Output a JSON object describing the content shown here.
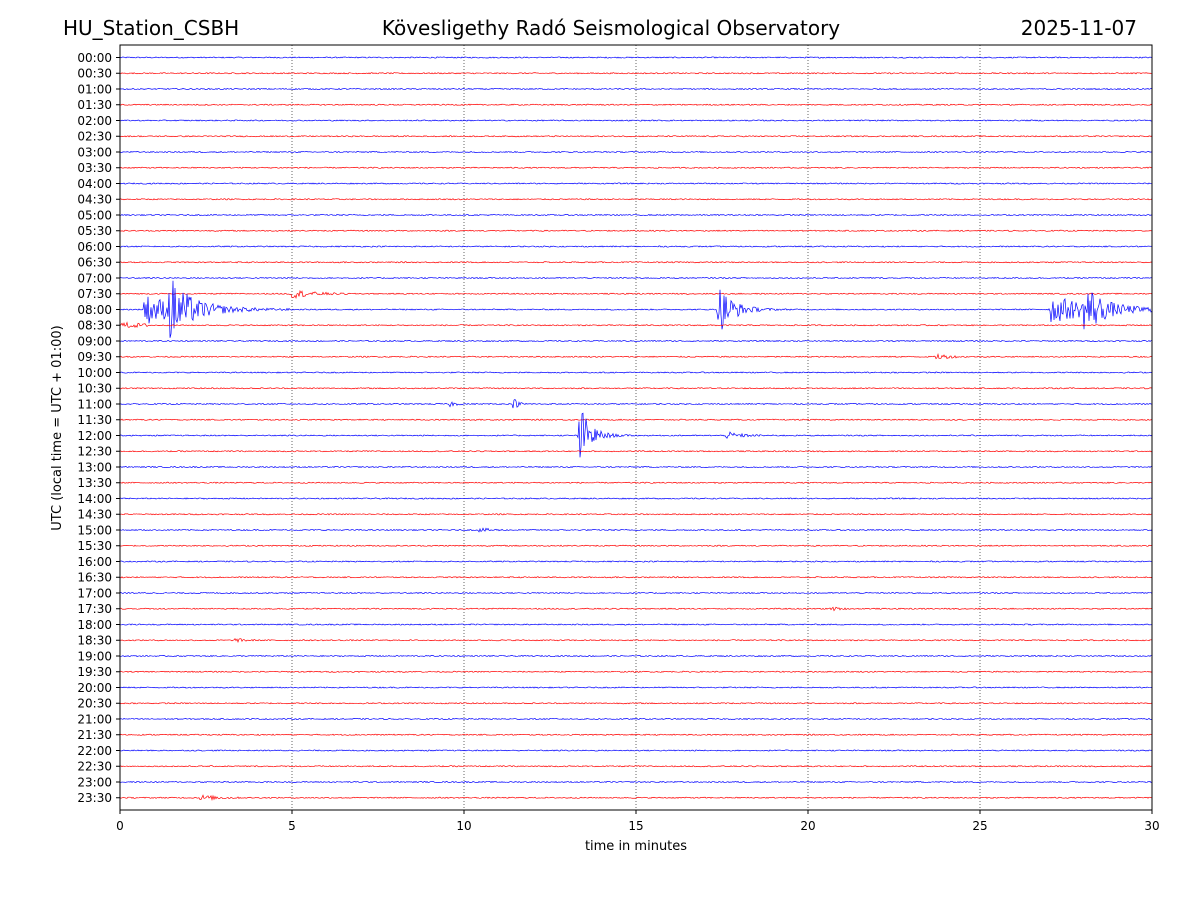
{
  "chart_data": {
    "type": "line",
    "station": "HU_Station_CSBH",
    "title": "Kövesligethy Radó Seismological Observatory",
    "date": "2025-11-07",
    "xlabel": "time in minutes",
    "ylabel": "UTC (local time = UTC + 01:00)",
    "xlim": [
      0,
      30
    ],
    "xticks": [
      "0",
      "5",
      "10",
      "15",
      "20",
      "25",
      "30"
    ],
    "vertical_gridlines_at": [
      5,
      10,
      15,
      20,
      25
    ],
    "row_labels": [
      "00:00",
      "00:30",
      "01:00",
      "01:30",
      "02:00",
      "02:30",
      "03:00",
      "03:30",
      "04:00",
      "04:30",
      "05:00",
      "05:30",
      "06:00",
      "06:30",
      "07:00",
      "07:30",
      "08:00",
      "08:30",
      "09:00",
      "09:30",
      "10:00",
      "10:30",
      "11:00",
      "11:30",
      "12:00",
      "12:30",
      "13:00",
      "13:30",
      "14:00",
      "14:30",
      "15:00",
      "15:30",
      "16:00",
      "16:30",
      "17:00",
      "17:30",
      "18:00",
      "18:30",
      "19:00",
      "19:30",
      "20:00",
      "20:30",
      "21:00",
      "21:30",
      "22:00",
      "22:30",
      "23:00",
      "23:30"
    ],
    "trace_colors": [
      "#0000ff",
      "#ff0000"
    ],
    "noise_amplitude": 0.6,
    "events": [
      {
        "row": "07:30",
        "start_min": 4.9,
        "end_min": 6.6,
        "amplitude": 5,
        "decay_min": 0.6
      },
      {
        "row": "08:00",
        "start_min": 0.65,
        "end_min": 5.0,
        "amplitude": 16,
        "decay_min": 1.2
      },
      {
        "row": "08:00",
        "start_min": 1.4,
        "end_min": 4.0,
        "amplitude": 30,
        "decay_min": 0.5
      },
      {
        "row": "08:00",
        "start_min": 17.35,
        "end_min": 21.0,
        "amplitude": 30,
        "decay_min": 0.4
      },
      {
        "row": "08:00",
        "start_min": 27.0,
        "end_min": 30.0,
        "amplitude": 14,
        "decay_min": 1.5
      },
      {
        "row": "08:00",
        "start_min": 28.0,
        "end_min": 30.0,
        "amplitude": 30,
        "decay_min": 0.35
      },
      {
        "row": "08:30",
        "start_min": 0.0,
        "end_min": 0.8,
        "amplitude": 3,
        "decay_min": 0.8
      },
      {
        "row": "09:30",
        "start_min": 23.7,
        "end_min": 24.6,
        "amplitude": 4,
        "decay_min": 0.3
      },
      {
        "row": "11:00",
        "start_min": 9.55,
        "end_min": 10.1,
        "amplitude": 4,
        "decay_min": 0.15
      },
      {
        "row": "11:00",
        "start_min": 11.4,
        "end_min": 12.1,
        "amplitude": 9,
        "decay_min": 0.12
      },
      {
        "row": "12:00",
        "start_min": 13.3,
        "end_min": 15.2,
        "amplitude": 40,
        "decay_min": 0.3
      },
      {
        "row": "12:00",
        "start_min": 17.6,
        "end_min": 19.5,
        "amplitude": 4,
        "decay_min": 0.4
      },
      {
        "row": "15:00",
        "start_min": 10.4,
        "end_min": 11.2,
        "amplitude": 2,
        "decay_min": 0.4
      },
      {
        "row": "17:30",
        "start_min": 20.6,
        "end_min": 21.2,
        "amplitude": 3,
        "decay_min": 0.2
      },
      {
        "row": "18:30",
        "start_min": 3.3,
        "end_min": 3.9,
        "amplitude": 2,
        "decay_min": 0.3
      },
      {
        "row": "23:30",
        "start_min": 2.3,
        "end_min": 3.5,
        "amplitude": 3,
        "decay_min": 0.5
      }
    ]
  }
}
